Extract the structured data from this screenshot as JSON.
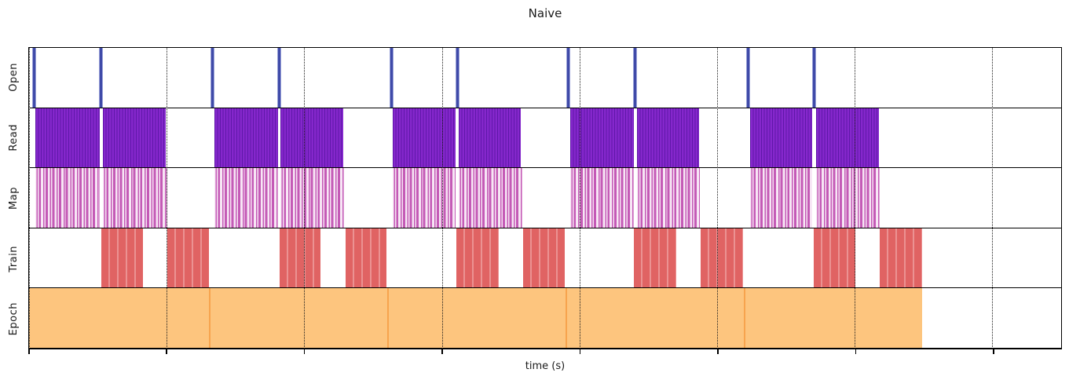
{
  "page": {
    "title": "Naive",
    "xlabel": "time (s)"
  },
  "colors": {
    "open_bar": "#3f4aa8",
    "read_fill": "#8527cc",
    "read_edge": "#5e17a8",
    "map_fill": "#c45ab6",
    "map_gap": "#fbeffa",
    "train_fill": "#e06363",
    "train_separator": "#eb9292",
    "epoch_fill": "#fdc57e",
    "epoch_boundary": "#f7a44e",
    "axis": "#000000"
  },
  "chart_data": {
    "type": "bar",
    "variant": "horizontal gantt-timeline of pipeline stages (matplotlib broken_barh style)",
    "title": "Naive",
    "xlabel": "time (s)",
    "ylabel": "",
    "legend": "none",
    "grid": "vertical dotted gridlines at unlabeled ticks",
    "x_axis": {
      "units": "percent of plotted span (tick labels not shown in image)",
      "range": [
        0,
        100
      ],
      "tick_positions": [
        0.02,
        13.33,
        26.67,
        40.0,
        53.33,
        66.67,
        80.0,
        93.33
      ],
      "tick_labels": [
        "",
        "",
        "",
        "",
        "",
        "",
        "",
        ""
      ]
    },
    "lanes": [
      {
        "label": "Open",
        "style": "open",
        "intervals": [
          [
            0.27,
            0.65
          ],
          [
            6.8,
            7.18
          ],
          [
            17.59,
            17.97
          ],
          [
            24.05,
            24.43
          ],
          [
            34.92,
            35.3
          ],
          [
            41.3,
            41.68
          ],
          [
            52.09,
            52.47
          ],
          [
            58.55,
            58.93
          ],
          [
            69.49,
            69.87
          ],
          [
            75.87,
            76.25
          ]
        ]
      },
      {
        "label": "Read",
        "style": "read",
        "intervals": [
          [
            0.61,
            6.84
          ],
          [
            7.14,
            13.22
          ],
          [
            17.93,
            24.09
          ],
          [
            24.39,
            30.47
          ],
          [
            35.26,
            41.34
          ],
          [
            41.64,
            47.64
          ],
          [
            52.43,
            58.59
          ],
          [
            58.89,
            64.89
          ],
          [
            69.83,
            75.91
          ],
          [
            76.22,
            82.37
          ]
        ]
      },
      {
        "label": "Map",
        "style": "map",
        "intervals": [
          [
            0.61,
            6.84
          ],
          [
            7.14,
            13.37
          ],
          [
            17.93,
            24.09
          ],
          [
            24.39,
            30.55
          ],
          [
            35.26,
            41.34
          ],
          [
            41.64,
            47.79
          ],
          [
            52.43,
            58.59
          ],
          [
            58.89,
            64.97
          ],
          [
            69.83,
            75.91
          ],
          [
            76.22,
            82.45
          ]
        ]
      },
      {
        "label": "Train",
        "style": "train",
        "intervals": [
          [
            6.99,
            11.02
          ],
          [
            13.37,
            17.4
          ],
          [
            24.24,
            28.27
          ],
          [
            30.7,
            34.65
          ],
          [
            41.41,
            45.52
          ],
          [
            47.87,
            51.9
          ],
          [
            58.59,
            62.69
          ],
          [
            65.05,
            69.15
          ],
          [
            75.99,
            80.09
          ],
          [
            82.45,
            86.55
          ]
        ]
      },
      {
        "label": "Epoch",
        "style": "epoch",
        "intervals": [
          [
            0.0,
            17.4
          ],
          [
            17.4,
            34.73
          ],
          [
            34.73,
            51.98
          ],
          [
            51.98,
            69.22
          ],
          [
            69.22,
            86.55
          ]
        ]
      }
    ]
  }
}
